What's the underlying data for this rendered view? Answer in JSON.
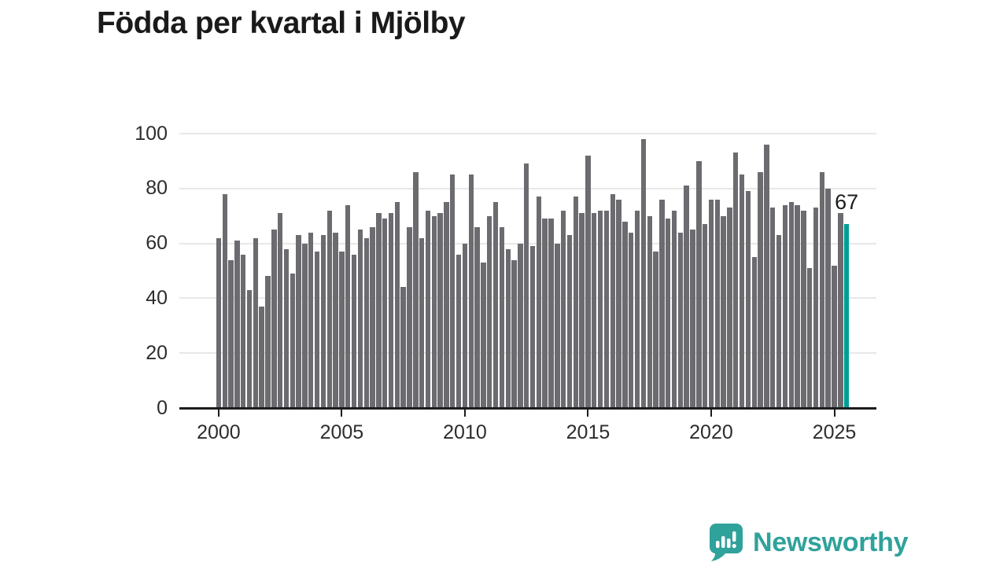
{
  "title": "Födda per kvartal i Mjölby",
  "annotation": {
    "label": "67"
  },
  "logo": {
    "text": "Newsworthy",
    "icon": "newsworthy-speech-bubble-chart-icon"
  },
  "colors": {
    "bar": "#6b6b70",
    "highlight": "#009e97",
    "grid": "#e8e8e8",
    "axis": "#1b1c1e",
    "tick_label": "#2d2d2d",
    "title": "#1a1a1a",
    "logo": "#2fa29b"
  },
  "chart_data": {
    "type": "bar",
    "title": "Födda per kvartal i Mjölby",
    "frequency": "quarterly",
    "x_start": "2000-Q1",
    "x_end": "2025-Q3",
    "xlabel": "",
    "ylabel": "",
    "ylim": [
      0,
      100
    ],
    "y_ticks": [
      0,
      20,
      40,
      60,
      80,
      100
    ],
    "x_ticks": [
      2000,
      2005,
      2010,
      2015,
      2020,
      2025
    ],
    "grid": true,
    "legend": false,
    "highlight_index": 102,
    "highlight_label": "67",
    "values": [
      62,
      78,
      54,
      61,
      56,
      43,
      62,
      37,
      48,
      65,
      71,
      58,
      49,
      63,
      60,
      64,
      57,
      63,
      72,
      64,
      57,
      74,
      56,
      65,
      62,
      66,
      71,
      69,
      71,
      75,
      44,
      66,
      86,
      62,
      72,
      70,
      71,
      75,
      85,
      56,
      60,
      85,
      66,
      53,
      70,
      75,
      66,
      58,
      54,
      60,
      89,
      59,
      77,
      69,
      69,
      60,
      72,
      63,
      77,
      71,
      92,
      71,
      72,
      72,
      78,
      76,
      68,
      64,
      72,
      98,
      70,
      57,
      76,
      69,
      72,
      64,
      81,
      65,
      90,
      67,
      76,
      76,
      70,
      73,
      93,
      85,
      79,
      55,
      86,
      96,
      73,
      63,
      74,
      75,
      74,
      72,
      51,
      73,
      86,
      80,
      52,
      71,
      67
    ]
  }
}
